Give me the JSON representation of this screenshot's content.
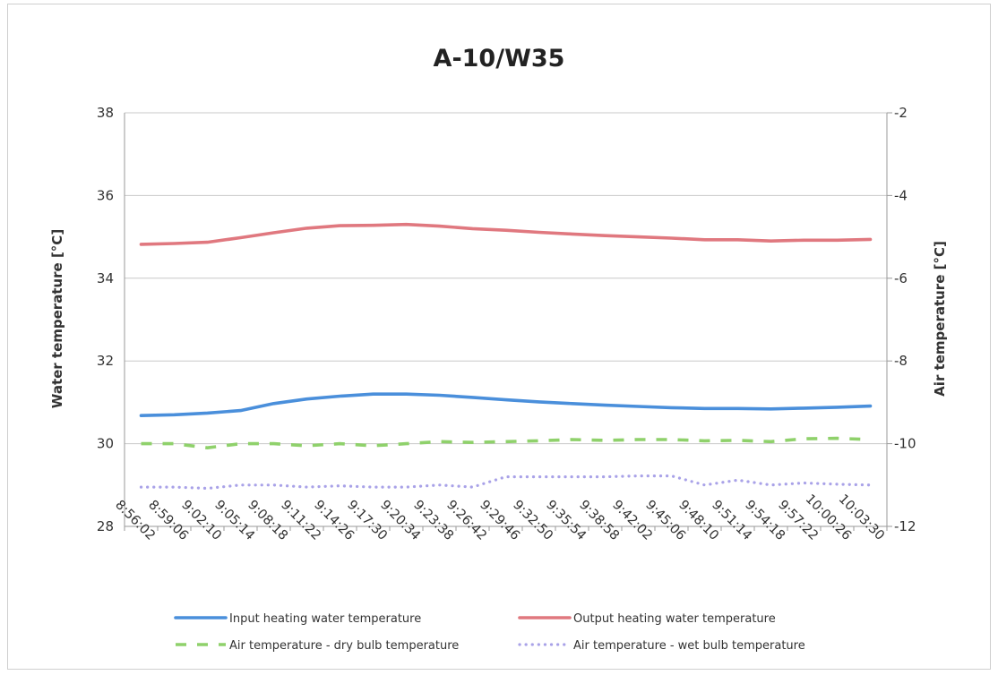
{
  "chart_data": {
    "type": "line",
    "title": "A-10/W35",
    "y_left": {
      "label": "Water temperature [°C]",
      "ticks": [
        "28",
        "30",
        "32",
        "34",
        "36",
        "38"
      ],
      "range": [
        28,
        38
      ]
    },
    "y_right": {
      "label": "Air temperature [°C]",
      "ticks": [
        "-12",
        "-10",
        "-8",
        "-6",
        "-4",
        "-2"
      ],
      "range": [
        -12,
        -2
      ]
    },
    "x_tick_labels": [
      "8:56:02",
      "8:59:06",
      "9:02:10",
      "9:05:14",
      "9:08:18",
      "9:11:22",
      "9:14:26",
      "9:17:30",
      "9:20:34",
      "9:23:38",
      "9:26:42",
      "9:29:46",
      "9:32:50",
      "9:35:54",
      "9:38:58",
      "9:42:02",
      "9:45:06",
      "9:48:10",
      "9:51:14",
      "9:54:18",
      "9:57:22",
      "10:00:26",
      "10:03:30"
    ],
    "grid": "horizontal",
    "legend_position": "bottom",
    "series": [
      {
        "name": "Input heating water temperature",
        "axis": "left",
        "color": "#4a8fdb",
        "style": "solid",
        "values": [
          30.68,
          30.7,
          30.74,
          30.8,
          30.97,
          31.08,
          31.15,
          31.2,
          31.2,
          31.17,
          31.12,
          31.06,
          31.01,
          30.97,
          30.93,
          30.9,
          30.87,
          30.85,
          30.85,
          30.84,
          30.86,
          30.88,
          30.91
        ]
      },
      {
        "name": "Output heating water temperature",
        "axis": "left",
        "color": "#e0787f",
        "style": "solid",
        "values": [
          34.82,
          34.84,
          34.87,
          34.98,
          35.1,
          35.21,
          35.27,
          35.28,
          35.3,
          35.26,
          35.2,
          35.16,
          35.11,
          35.07,
          35.03,
          35.0,
          34.97,
          34.93,
          34.93,
          34.9,
          34.92,
          34.92,
          34.94
        ]
      },
      {
        "name": "Air temperature - dry bulb temperature",
        "axis": "right",
        "color": "#8fd16b",
        "style": "dashed",
        "values": [
          -10.0,
          -10.0,
          -10.1,
          -10.0,
          -10.0,
          -10.05,
          -10.0,
          -10.05,
          -10.0,
          -9.95,
          -9.97,
          -9.95,
          -9.93,
          -9.9,
          -9.92,
          -9.9,
          -9.9,
          -9.93,
          -9.92,
          -9.95,
          -9.88,
          -9.87,
          -9.9
        ]
      },
      {
        "name": "Air temperature - wet bulb temperature",
        "axis": "right",
        "color": "#a9a2e8",
        "style": "dotted",
        "values": [
          -11.05,
          -11.05,
          -11.08,
          -11.0,
          -11.0,
          -11.05,
          -11.02,
          -11.05,
          -11.05,
          -11.0,
          -11.05,
          -10.8,
          -10.8,
          -10.8,
          -10.8,
          -10.78,
          -10.78,
          -11.0,
          -10.88,
          -11.0,
          -10.95,
          -10.98,
          -11.0
        ]
      }
    ]
  }
}
